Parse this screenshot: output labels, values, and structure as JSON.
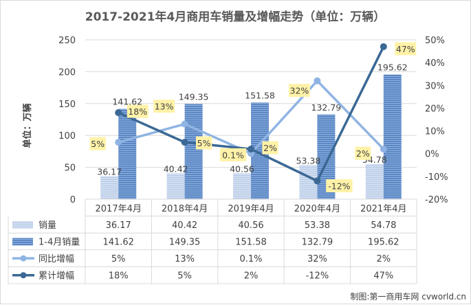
{
  "chart_data": {
    "type": "bar",
    "title": "2017-2021年4月商用车销量及增幅走势（单位：万辆）",
    "ylabel": "单位：万辆",
    "ylim": [
      0,
      250
    ],
    "y_ticks": [
      "0",
      "50",
      "100",
      "150",
      "200",
      "250"
    ],
    "y2lim": [
      -20,
      50
    ],
    "y2_ticks": [
      "-20%",
      "-10%",
      "0%",
      "10%",
      "20%",
      "30%",
      "40%",
      "50%"
    ],
    "categories": [
      "2017年4月",
      "2018年4月",
      "2019年4月",
      "2020年4月",
      "2021年4月"
    ],
    "series": [
      {
        "name": "销量",
        "type": "bar",
        "axis": "left",
        "values": [
          36.17,
          40.42,
          40.56,
          53.38,
          54.78
        ],
        "labels": [
          "36.17",
          "40.42",
          "40.56",
          "53.38",
          "54.78"
        ]
      },
      {
        "name": "1-4月销量",
        "type": "bar",
        "axis": "left",
        "values": [
          141.62,
          149.35,
          151.58,
          132.79,
          195.62
        ],
        "labels": [
          "141.62",
          "149.35",
          "151.58",
          "132.79",
          "195.62"
        ]
      },
      {
        "name": "同比增幅",
        "type": "line",
        "axis": "right",
        "values": [
          5,
          13,
          0.1,
          32,
          2
        ],
        "labels": [
          "5%",
          "13%",
          "0.1%",
          "32%",
          "2%"
        ]
      },
      {
        "name": "累计增幅",
        "type": "line",
        "axis": "right",
        "values": [
          18,
          5,
          2,
          -12,
          47
        ],
        "labels": [
          "18%",
          "5%",
          "2%",
          "-12%",
          "47%"
        ]
      }
    ],
    "grid": true,
    "legend": "data table below chart",
    "colors": {
      "bar1_fill": "#d2def0",
      "bar1_stripe": "#b4c8e6",
      "bar2_fill": "#5b87c4",
      "bar2_stripe": "#8fb0de",
      "line1": "#8fb4e3",
      "line2": "#3b6894",
      "label_bg": "#fff2a8",
      "grid": "#d9d9d9",
      "text": "#404040"
    }
  },
  "watermark": "制图:第一商用车网 cvworld.cn"
}
